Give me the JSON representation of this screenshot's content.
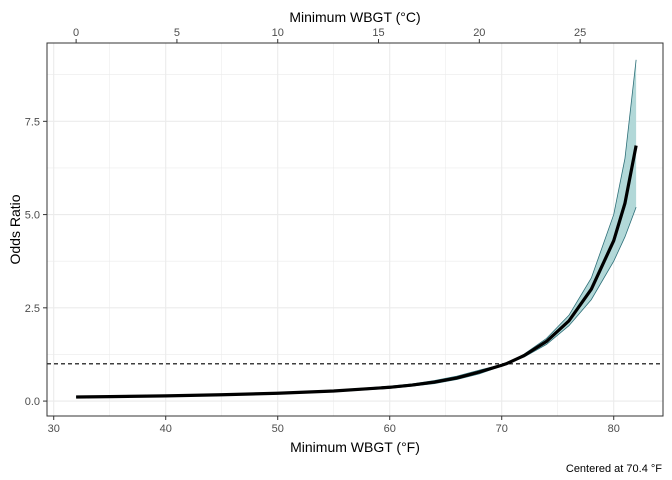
{
  "chart_data": {
    "type": "line",
    "top_axis_title": "Minimum WBGT (°C)",
    "xlabel": "Minimum WBGT (°F)",
    "ylabel": "Odds Ratio",
    "caption": "Centered at 70.4 °F",
    "xlim": [
      29.4,
      84.4
    ],
    "ylim": [
      -0.4,
      9.6
    ],
    "x_ticks": [
      30,
      40,
      50,
      60,
      70,
      80
    ],
    "y_ticks": [
      0.0,
      2.5,
      5.0,
      7.5
    ],
    "y_tick_labels": [
      "0.0",
      "2.5",
      "5.0",
      "7.5"
    ],
    "top_ticks_celsius": [
      0,
      5,
      10,
      15,
      20,
      25
    ],
    "reference_line": {
      "y": 1.0,
      "style": "dashed"
    },
    "grid": true,
    "colors": {
      "line": "#000000",
      "ribbon": "#b2d8d8",
      "ribbon_edge": "#2e6f78",
      "grid": "#ebebeb",
      "panel_border": "#333333"
    },
    "series": [
      {
        "x": [
          32,
          35,
          40,
          45,
          50,
          55,
          60,
          62,
          64,
          66,
          68,
          70,
          70.4,
          72,
          74,
          76,
          78,
          80,
          81,
          82
        ],
        "y": [
          0.11,
          0.12,
          0.14,
          0.17,
          0.21,
          0.27,
          0.37,
          0.43,
          0.51,
          0.62,
          0.78,
          0.96,
          1.0,
          1.22,
          1.6,
          2.15,
          3.0,
          4.3,
          5.3,
          6.85
        ],
        "lower": [
          0.1,
          0.11,
          0.13,
          0.16,
          0.2,
          0.25,
          0.34,
          0.4,
          0.47,
          0.58,
          0.73,
          0.94,
          1.0,
          1.18,
          1.52,
          2.02,
          2.72,
          3.75,
          4.4,
          5.2
        ],
        "upper": [
          0.12,
          0.13,
          0.15,
          0.18,
          0.23,
          0.29,
          0.4,
          0.46,
          0.55,
          0.67,
          0.83,
          0.98,
          1.0,
          1.26,
          1.68,
          2.3,
          3.3,
          5.0,
          6.5,
          9.15
        ]
      }
    ]
  }
}
